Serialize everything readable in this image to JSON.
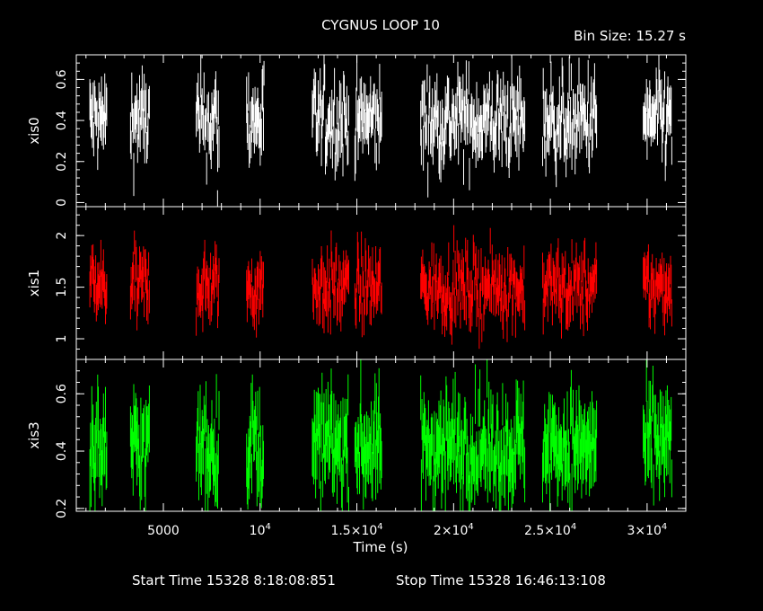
{
  "title": "CYGNUS LOOP 10",
  "bin_size": "Bin Size: 15.27 s",
  "footer": {
    "start": "Start Time 15328  8:18:08:851",
    "stop": "Stop Time 15328 16:46:13:108"
  },
  "colors": {
    "background": "#000000",
    "axes": "#ffffff",
    "xis0": "#ffffff",
    "xis1": "#ff0000",
    "xis3": "#00ff00"
  },
  "chart_data": [
    {
      "type": "scatter",
      "name": "xis0",
      "ylabel": "xis0",
      "xlabel": "Time (s)",
      "xlim": [
        500,
        32000
      ],
      "ylim": [
        -0.02,
        0.72
      ],
      "yticks": [
        {
          "v": 0,
          "label": "0"
        },
        {
          "v": 0.2,
          "label": "0.2"
        },
        {
          "v": 0.4,
          "label": "0.4"
        },
        {
          "v": 0.6,
          "label": "0.6"
        }
      ],
      "color": "#ffffff",
      "center": 0.4,
      "spread": 0.1,
      "err": 0.09,
      "points": [
        [
          7800,
          0.0,
          0.06
        ],
        [
          10200,
          0.63,
          0.06
        ]
      ]
    },
    {
      "type": "scatter",
      "name": "xis1",
      "ylabel": "xis1",
      "xlabel": "Time (s)",
      "xlim": [
        500,
        32000
      ],
      "ylim": [
        0.8,
        2.28
      ],
      "yticks": [
        {
          "v": 1,
          "label": "1"
        },
        {
          "v": 1.5,
          "label": "1.5"
        },
        {
          "v": 2,
          "label": "2"
        }
      ],
      "color": "#ff0000",
      "center": 1.5,
      "spread": 0.16,
      "err": 0.16
    },
    {
      "type": "scatter",
      "name": "xis3",
      "ylabel": "xis3",
      "xlabel": "Time (s)",
      "xlim": [
        500,
        32000
      ],
      "ylim": [
        0.19,
        0.72
      ],
      "yticks": [
        {
          "v": 0.2,
          "label": "0.2"
        },
        {
          "v": 0.4,
          "label": "0.4"
        },
        {
          "v": 0.6,
          "label": "0.6"
        }
      ],
      "color": "#00ff00",
      "center": 0.42,
      "spread": 0.08,
      "err": 0.09
    }
  ],
  "segments": [
    [
      1200,
      2100
    ],
    [
      3300,
      4300
    ],
    [
      6700,
      7900
    ],
    [
      9300,
      10200
    ],
    [
      12700,
      14600
    ],
    [
      14900,
      16300
    ],
    [
      18300,
      23700
    ],
    [
      24600,
      27400
    ],
    [
      29800,
      31300
    ]
  ],
  "x_axis": {
    "label": "Time (s)",
    "ticks": [
      {
        "v": 5000,
        "base": "5000",
        "exp": ""
      },
      {
        "v": 10000,
        "base": "10",
        "exp": "4"
      },
      {
        "v": 15000,
        "base": "1.5×10",
        "exp": "4"
      },
      {
        "v": 20000,
        "base": "2×10",
        "exp": "4"
      },
      {
        "v": 25000,
        "base": "2.5×10",
        "exp": "4"
      },
      {
        "v": 30000,
        "base": "3×10",
        "exp": "4"
      }
    ]
  }
}
